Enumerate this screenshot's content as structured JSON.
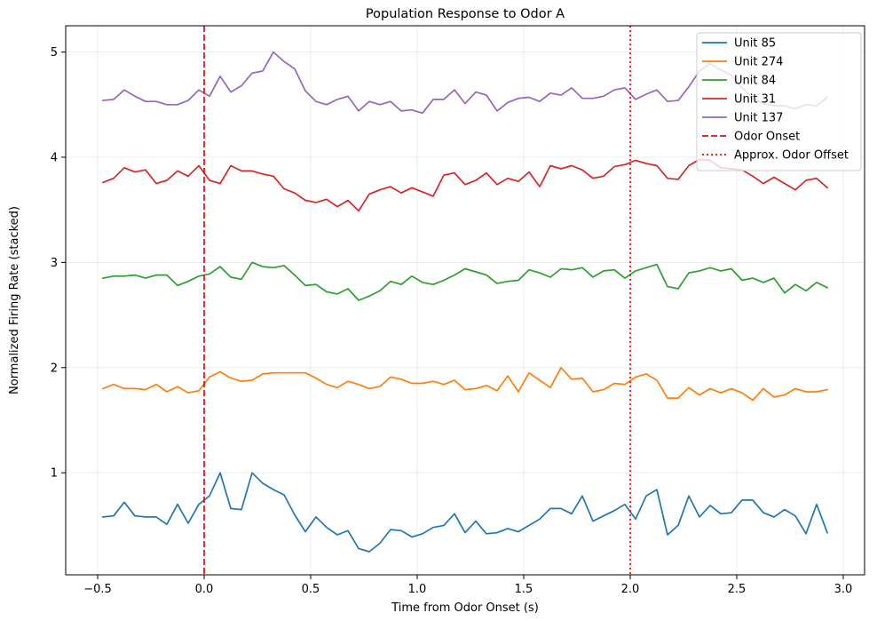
{
  "chart_data": {
    "type": "line",
    "title": "Population Response to Odor A",
    "xlabel": "Time from Odor Onset (s)",
    "ylabel": "Normalized Firing Rate (stacked)",
    "xlim": [
      -0.65,
      3.1
    ],
    "ylim": [
      0.03,
      5.25
    ],
    "xticks": [
      -0.5,
      0.0,
      0.5,
      1.0,
      1.5,
      2.0,
      2.5,
      3.0
    ],
    "xtick_labels": [
      "−0.5",
      "0.0",
      "0.5",
      "1.0",
      "1.5",
      "2.0",
      "2.5",
      "3.0"
    ],
    "yticks": [
      1,
      2,
      3,
      4,
      5
    ],
    "ytick_labels": [
      "1",
      "2",
      "3",
      "4",
      "5"
    ],
    "grid": true,
    "legend_position": "top-right",
    "x_start": -0.475,
    "x_step": 0.05,
    "series": [
      {
        "name": "Unit 85",
        "color": "#1f77b4",
        "values": [
          0.58,
          0.59,
          0.72,
          0.59,
          0.58,
          0.58,
          0.51,
          0.7,
          0.52,
          0.7,
          0.78,
          1.0,
          0.66,
          0.65,
          1.0,
          0.9,
          0.84,
          0.79,
          0.6,
          0.44,
          0.58,
          0.48,
          0.41,
          0.45,
          0.28,
          0.25,
          0.33,
          0.46,
          0.45,
          0.39,
          0.42,
          0.48,
          0.5,
          0.61,
          0.43,
          0.54,
          0.42,
          0.43,
          0.47,
          0.44,
          0.5,
          0.56,
          0.66,
          0.66,
          0.61,
          0.78,
          0.54,
          0.59,
          0.64,
          0.7,
          0.56,
          0.78,
          0.84,
          0.41,
          0.5,
          0.78,
          0.58,
          0.69,
          0.61,
          0.62,
          0.74,
          0.74,
          0.62,
          0.58,
          0.65,
          0.59,
          0.42,
          0.7,
          0.43
        ]
      },
      {
        "name": "Unit 274",
        "color": "#ff7f0e",
        "values": [
          1.8,
          1.84,
          1.8,
          1.8,
          1.79,
          1.84,
          1.77,
          1.82,
          1.76,
          1.78,
          1.91,
          1.96,
          1.9,
          1.87,
          1.88,
          1.94,
          1.95,
          1.95,
          1.95,
          1.95,
          1.9,
          1.84,
          1.81,
          1.87,
          1.84,
          1.8,
          1.82,
          1.91,
          1.89,
          1.85,
          1.85,
          1.87,
          1.84,
          1.88,
          1.79,
          1.8,
          1.83,
          1.78,
          1.92,
          1.77,
          1.95,
          1.88,
          1.81,
          2.0,
          1.89,
          1.9,
          1.77,
          1.79,
          1.85,
          1.84,
          1.91,
          1.94,
          1.88,
          1.71,
          1.71,
          1.81,
          1.74,
          1.8,
          1.76,
          1.8,
          1.76,
          1.69,
          1.8,
          1.72,
          1.74,
          1.8,
          1.77,
          1.77,
          1.79
        ]
      },
      {
        "name": "Unit 84",
        "color": "#2ca02c",
        "values": [
          2.85,
          2.87,
          2.87,
          2.88,
          2.85,
          2.88,
          2.88,
          2.78,
          2.82,
          2.87,
          2.89,
          2.96,
          2.86,
          2.84,
          3.0,
          2.96,
          2.95,
          2.97,
          2.88,
          2.78,
          2.79,
          2.72,
          2.7,
          2.75,
          2.64,
          2.68,
          2.73,
          2.82,
          2.79,
          2.87,
          2.81,
          2.79,
          2.83,
          2.88,
          2.94,
          2.91,
          2.88,
          2.8,
          2.82,
          2.83,
          2.93,
          2.9,
          2.86,
          2.94,
          2.93,
          2.95,
          2.86,
          2.92,
          2.93,
          2.85,
          2.92,
          2.95,
          2.98,
          2.77,
          2.75,
          2.9,
          2.92,
          2.95,
          2.92,
          2.94,
          2.83,
          2.85,
          2.81,
          2.85,
          2.71,
          2.79,
          2.73,
          2.81,
          2.76
        ]
      },
      {
        "name": "Unit 31",
        "color": "#d62728",
        "values": [
          3.76,
          3.8,
          3.9,
          3.86,
          3.88,
          3.75,
          3.78,
          3.87,
          3.82,
          3.92,
          3.78,
          3.75,
          3.92,
          3.87,
          3.87,
          3.84,
          3.82,
          3.7,
          3.66,
          3.59,
          3.57,
          3.6,
          3.53,
          3.59,
          3.49,
          3.65,
          3.69,
          3.72,
          3.66,
          3.71,
          3.67,
          3.63,
          3.83,
          3.85,
          3.74,
          3.78,
          3.85,
          3.74,
          3.8,
          3.77,
          3.86,
          3.72,
          3.92,
          3.89,
          3.92,
          3.88,
          3.8,
          3.82,
          3.91,
          3.93,
          3.97,
          3.94,
          3.92,
          3.8,
          3.79,
          3.92,
          3.98,
          3.97,
          3.9,
          3.89,
          3.88,
          3.82,
          3.75,
          3.81,
          3.75,
          3.69,
          3.78,
          3.8,
          3.71
        ]
      },
      {
        "name": "Unit 137",
        "color": "#9467bd",
        "values": [
          4.54,
          4.55,
          4.64,
          4.58,
          4.53,
          4.53,
          4.5,
          4.5,
          4.54,
          4.64,
          4.58,
          4.77,
          4.62,
          4.68,
          4.8,
          4.82,
          5.0,
          4.91,
          4.84,
          4.63,
          4.53,
          4.5,
          4.55,
          4.58,
          4.44,
          4.53,
          4.5,
          4.53,
          4.44,
          4.45,
          4.42,
          4.55,
          4.55,
          4.64,
          4.51,
          4.62,
          4.59,
          4.44,
          4.52,
          4.56,
          4.57,
          4.53,
          4.61,
          4.59,
          4.66,
          4.56,
          4.56,
          4.58,
          4.64,
          4.66,
          4.55,
          4.6,
          4.64,
          4.53,
          4.54,
          4.67,
          4.82,
          4.89,
          4.83,
          4.78,
          4.66,
          4.56,
          4.51,
          4.49,
          4.49,
          4.46,
          4.5,
          4.49,
          4.57
        ]
      }
    ],
    "vlines": [
      {
        "name": "Odor Onset",
        "x": 0.0,
        "color": "#ff0000",
        "style": "dashed"
      },
      {
        "name": "Approx. Odor Offset",
        "x": 2.0,
        "color": "#ff0000",
        "style": "dotted"
      }
    ]
  }
}
